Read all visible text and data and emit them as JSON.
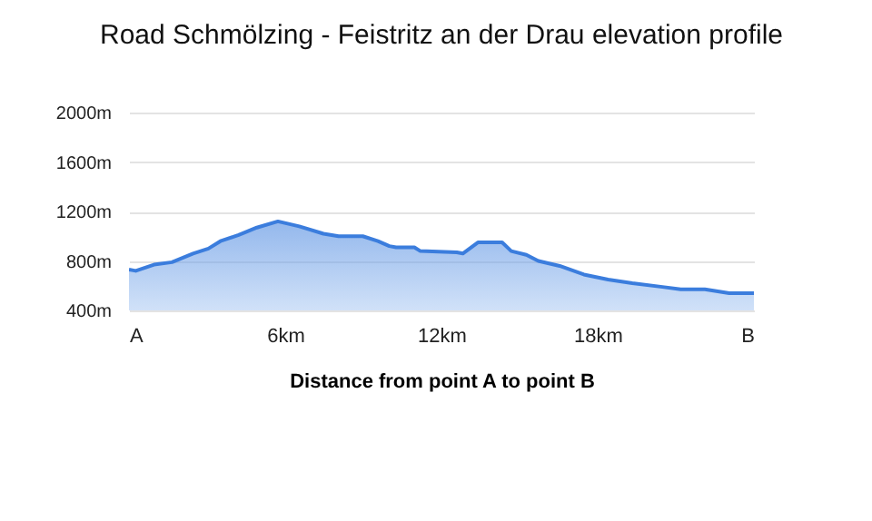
{
  "chart_data": {
    "type": "area",
    "title": "Road Schmölzing - Feistritz an der Drau elevation profile",
    "xlabel": "Distance from point A to point B",
    "x": [
      0,
      0.26,
      0.96,
      1.65,
      2.46,
      3.05,
      3.51,
      4.21,
      4.91,
      5.72,
      6.54,
      7.47,
      8.05,
      8.98,
      9.56,
      10.0,
      10.26,
      10.96,
      11.19,
      12.59,
      12.82,
      13.4,
      14.33,
      14.68,
      15.26,
      15.72,
      16.54,
      17.47,
      18.4,
      19.33,
      20.49,
      21.19,
      22.12,
      23.05,
      24.0
    ],
    "series": [
      {
        "color": "#3b7ddd",
        "values": [
          730,
          720,
          770,
          790,
          860,
          900,
          960,
          1010,
          1070,
          1120,
          1080,
          1020,
          1000,
          1000,
          960,
          920,
          910,
          910,
          880,
          870,
          860,
          950,
          950,
          880,
          850,
          800,
          760,
          690,
          650,
          620,
          590,
          570,
          570,
          540,
          540
        ]
      }
    ],
    "xlim": [
      0,
      24
    ],
    "xticks": [
      {
        "value": 0,
        "label": "A"
      },
      {
        "value": 6,
        "label": "6km"
      },
      {
        "value": 12,
        "label": "12km"
      },
      {
        "value": 18,
        "label": "18km"
      },
      {
        "value": 24,
        "label": "B"
      }
    ],
    "ylim": [
      400,
      2000
    ],
    "yticks": [
      {
        "value": 400,
        "label": "400m"
      },
      {
        "value": 800,
        "label": "800m"
      },
      {
        "value": 1200,
        "label": "1200m"
      },
      {
        "value": 1600,
        "label": "1600m"
      },
      {
        "value": 2000,
        "label": "2000m"
      }
    ],
    "grid": "y"
  }
}
